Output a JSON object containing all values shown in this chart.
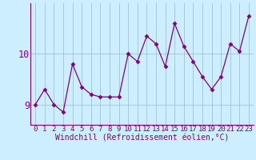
{
  "x": [
    0,
    1,
    2,
    3,
    4,
    5,
    6,
    7,
    8,
    9,
    10,
    11,
    12,
    13,
    14,
    15,
    16,
    17,
    18,
    19,
    20,
    21,
    22,
    23
  ],
  "y": [
    9.0,
    9.3,
    9.0,
    8.85,
    9.8,
    9.35,
    9.2,
    9.15,
    9.15,
    9.15,
    10.0,
    9.85,
    10.35,
    10.2,
    9.75,
    10.6,
    10.15,
    9.85,
    9.55,
    9.3,
    9.55,
    10.2,
    10.05,
    10.75
  ],
  "line_color": "#800080",
  "marker": "D",
  "marker_size": 2.5,
  "background_color": "#cceeff",
  "grid_color": "#99bbcc",
  "xlabel": "Windchill (Refroidissement éolien,°C)",
  "ylabel": "",
  "ylim": [
    8.6,
    11.0
  ],
  "yticks": [
    9,
    10
  ],
  "xticks": [
    0,
    1,
    2,
    3,
    4,
    5,
    6,
    7,
    8,
    9,
    10,
    11,
    12,
    13,
    14,
    15,
    16,
    17,
    18,
    19,
    20,
    21,
    22,
    23
  ],
  "font_color": "#800080",
  "tick_font_size": 6.5,
  "xlabel_font_size": 7.0,
  "ytick_font_size": 8.5
}
